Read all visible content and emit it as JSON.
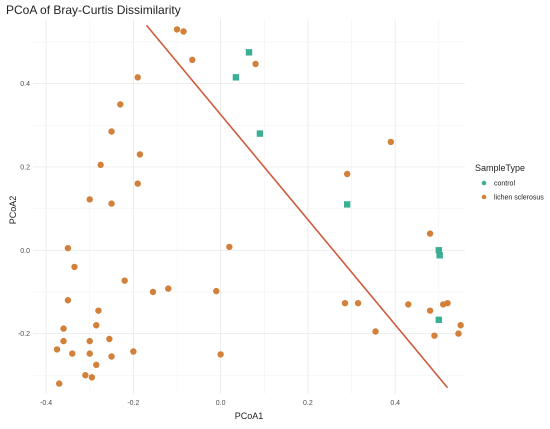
{
  "chart_data": {
    "type": "scatter",
    "title": "PCoA of Bray-Curtis Dissimilarity",
    "xlabel": "PCoA1",
    "ylabel": "PCoA2",
    "xlim": [
      -0.43,
      0.56
    ],
    "ylim": [
      -0.345,
      0.555
    ],
    "xticks": [
      -0.4,
      -0.2,
      0.0,
      0.2,
      0.4
    ],
    "xtick_labels": [
      "-0.4",
      "-0.2",
      "0.0",
      "0.2",
      "0.4"
    ],
    "yticks": [
      -0.2,
      0.0,
      0.2,
      0.4
    ],
    "ytick_labels": [
      "-0.2",
      "0.0",
      "0.2",
      "0.4"
    ],
    "grid": true,
    "legend": {
      "title": "SampleType",
      "position": "right"
    },
    "series": [
      {
        "name": "control",
        "color": "#3aaf93",
        "marker": "square",
        "points": [
          [
            0.065,
            0.475
          ],
          [
            0.035,
            0.415
          ],
          [
            0.09,
            0.28
          ],
          [
            0.29,
            0.11
          ],
          [
            0.5,
            0.0
          ],
          [
            0.502,
            -0.012
          ],
          [
            0.5,
            -0.167
          ]
        ]
      },
      {
        "name": "lichen sclerosus",
        "color": "#d2803a",
        "marker": "circle",
        "points": [
          [
            -0.1,
            0.53
          ],
          [
            -0.085,
            0.525
          ],
          [
            -0.065,
            0.457
          ],
          [
            0.08,
            0.447
          ],
          [
            -0.19,
            0.415
          ],
          [
            -0.23,
            0.35
          ],
          [
            -0.25,
            0.285
          ],
          [
            -0.185,
            0.23
          ],
          [
            -0.275,
            0.205
          ],
          [
            -0.19,
            0.16
          ],
          [
            -0.3,
            0.122
          ],
          [
            -0.25,
            0.112
          ],
          [
            0.39,
            0.26
          ],
          [
            0.29,
            0.183
          ],
          [
            -0.35,
            0.005
          ],
          [
            -0.335,
            -0.04
          ],
          [
            -0.22,
            -0.073
          ],
          [
            0.02,
            0.008
          ],
          [
            -0.155,
            -0.1
          ],
          [
            -0.12,
            -0.092
          ],
          [
            -0.01,
            -0.098
          ],
          [
            -0.35,
            -0.12
          ],
          [
            -0.28,
            -0.145
          ],
          [
            -0.36,
            -0.188
          ],
          [
            -0.285,
            -0.18
          ],
          [
            -0.36,
            -0.218
          ],
          [
            -0.3,
            -0.218
          ],
          [
            -0.255,
            -0.213
          ],
          [
            -0.375,
            -0.238
          ],
          [
            -0.34,
            -0.248
          ],
          [
            -0.3,
            -0.248
          ],
          [
            -0.2,
            -0.243
          ],
          [
            -0.25,
            -0.255
          ],
          [
            0.0,
            -0.25
          ],
          [
            -0.285,
            -0.275
          ],
          [
            -0.31,
            -0.3
          ],
          [
            -0.295,
            -0.305
          ],
          [
            -0.37,
            -0.32
          ],
          [
            0.285,
            -0.127
          ],
          [
            0.315,
            -0.127
          ],
          [
            0.355,
            -0.195
          ],
          [
            0.43,
            -0.13
          ],
          [
            0.48,
            0.04
          ],
          [
            0.48,
            -0.145
          ],
          [
            0.49,
            -0.205
          ],
          [
            0.51,
            -0.13
          ],
          [
            0.52,
            -0.127
          ],
          [
            0.55,
            -0.18
          ],
          [
            0.545,
            -0.2
          ]
        ]
      }
    ],
    "annotations": [
      {
        "type": "line",
        "color": "#cd5c3c",
        "from": [
          -0.17,
          0.54
        ],
        "to": [
          0.52,
          -0.33
        ]
      }
    ]
  }
}
